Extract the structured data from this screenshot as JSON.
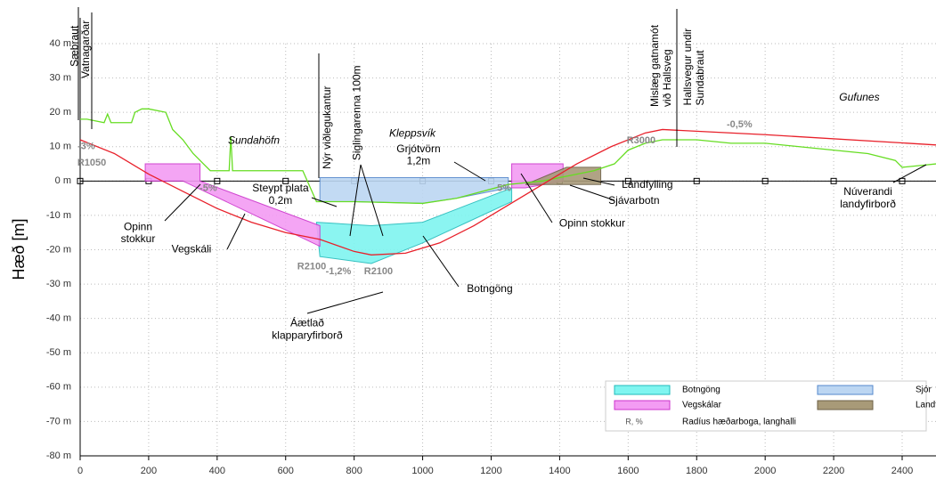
{
  "chart_data": {
    "type": "line",
    "ylabel": "Hæð [m]",
    "xlim": [
      0,
      2500
    ],
    "ylim": [
      -80,
      40
    ],
    "xticks": [
      0,
      200,
      400,
      600,
      800,
      1000,
      1200,
      1400,
      1600,
      1800,
      2000,
      2200,
      2400
    ],
    "yticks": [
      {
        "value": 40,
        "label": "40 m"
      },
      {
        "value": 30,
        "label": "30 m"
      },
      {
        "value": 20,
        "label": "20 m"
      },
      {
        "value": 10,
        "label": "10 m"
      },
      {
        "value": 0,
        "label": "0 m"
      },
      {
        "value": -10,
        "label": "-10 m"
      },
      {
        "value": -20,
        "label": "-20 m"
      },
      {
        "value": -30,
        "label": "-30 m"
      },
      {
        "value": -40,
        "label": "-40 m"
      },
      {
        "value": -50,
        "label": "-50 m"
      },
      {
        "value": -60,
        "label": "-60 m"
      },
      {
        "value": -70,
        "label": "-70 m"
      },
      {
        "value": -80,
        "label": "-80 m"
      }
    ],
    "grid": true,
    "series": [
      {
        "name": "Núverandi\nlandyfirborð",
        "color": "#66dd22",
        "x": [
          0,
          20,
          70,
          80,
          90,
          150,
          160,
          180,
          200,
          250,
          270,
          300,
          330,
          360,
          380,
          435,
          440,
          445,
          650,
          690,
          800,
          1000,
          1100,
          1250,
          1350,
          1450,
          1500,
          1560,
          1600,
          1650,
          1700,
          1800,
          1900,
          2000,
          2100,
          2200,
          2300,
          2380,
          2400,
          2450,
          2500
        ],
        "values": [
          18,
          18,
          17,
          19.5,
          17,
          17,
          20,
          21,
          21,
          20,
          15,
          12,
          8,
          5,
          3,
          3,
          13,
          3,
          3,
          -6,
          -6,
          -6.5,
          -5,
          -1,
          0,
          2,
          3,
          5,
          9,
          11,
          12,
          12,
          11,
          11,
          10,
          9,
          8,
          6,
          4,
          4.5,
          5
        ]
      },
      {
        "color": "#e8202a",
        "x": [
          0,
          100,
          200,
          300,
          400,
          500,
          600,
          700,
          800,
          850,
          950,
          1050,
          1150,
          1250,
          1350,
          1450,
          1550,
          1650,
          1700,
          2000,
          2500
        ],
        "values": [
          12,
          8,
          2,
          -3,
          -8,
          -12,
          -15,
          -17,
          -20.5,
          -21.5,
          -21,
          -18,
          -13,
          -7,
          -1,
          5,
          10,
          14,
          15,
          13.5,
          10.5
        ]
      }
    ],
    "areas": [
      {
        "name": "Botngöng",
        "color": "#7ff5f0",
        "edge": "#22bbbb",
        "polygons": [
          {
            "x": [
              690,
              850,
              1000,
              1130,
              1260,
              1260,
              1130,
              1000,
              850,
              700
            ],
            "y": [
              -12,
              -13,
              -12,
              -7,
              -2,
              -6,
              -12,
              -18,
              -24,
              -22
            ]
          }
        ]
      },
      {
        "name": "Vegskálar",
        "color": "#f39cf3",
        "edge": "#cc33cc",
        "polygons": [
          {
            "x": [
              190,
              350,
              350,
              700,
              700,
              300,
              190
            ],
            "y": [
              5,
              5,
              0,
              -13,
              -19,
              0,
              0
            ]
          },
          {
            "x": [
              1260,
              1410,
              1410,
              1300,
              1260
            ],
            "y": [
              5,
              5,
              0,
              -2,
              -2
            ]
          }
        ]
      },
      {
        "name": "Sjór",
        "color": "#bcd6f2",
        "edge": "#5588cc",
        "polygons": [
          {
            "x": [
              700,
              1250,
              1250,
              1100,
              1000,
              800,
              700
            ],
            "y": [
              1,
              1,
              -2,
              -5,
              -6.5,
              -6,
              -6
            ]
          }
        ]
      },
      {
        "name": "Landfylling",
        "color": "#a89a78",
        "edge": "#6d6046",
        "polygons": [
          {
            "x": [
              1300,
              1420,
              1520,
              1520
            ],
            "y": [
              -1,
              4,
              4,
              -1
            ]
          }
        ]
      }
    ],
    "legend_extra": {
      "symbol": "R, %",
      "label": "Radíus hæðarboga, langhalli"
    },
    "annotations": [
      {
        "text": "Sæbraut",
        "x": -15,
        "y": 33.3,
        "vertical": true
      },
      {
        "text": "Vatnagarðar",
        "x": 18,
        "y": 29.9,
        "vertical": true
      },
      {
        "text": "Nýr viðlegukantur",
        "x": 723,
        "y": 3.5,
        "vertical": true
      },
      {
        "text": "Siglingarenna 100m",
        "x": 809,
        "y": 6,
        "vertical": true
      },
      {
        "text": "Mislæg gatnamót\nvið Hallsveg",
        "x": 1680,
        "y": 21.6,
        "vertical": true
      },
      {
        "text": "Hallsvegur undir\nSundabraut",
        "x": 1776,
        "y": 22,
        "vertical": true
      },
      {
        "text": "Sundahöfn",
        "x": 507,
        "y": 11.7,
        "italic": true
      },
      {
        "text": "Kleppsvík",
        "x": 970,
        "y": 13.8,
        "italic": true
      },
      {
        "text": "Gufunes",
        "x": 2275,
        "y": 24.2,
        "italic": true
      },
      {
        "text": "Grjótvörn\n1,2m",
        "x": 988,
        "y": 9.2
      },
      {
        "text": "Steypt plata\n0,2m",
        "x": 585,
        "y": -2.3
      },
      {
        "text": "Opinn\nstokkur",
        "x": 169,
        "y": -13.5
      },
      {
        "text": "Vegskáli",
        "x": 325,
        "y": -20
      },
      {
        "text": "Áætlað\nklapparyfirborð",
        "x": 663,
        "y": -41.5
      },
      {
        "text": "Botngöng",
        "x": 1196,
        "y": -31.5
      },
      {
        "text": "Landfylling",
        "x": 1656,
        "y": -1.2
      },
      {
        "text": "Sjávarbotn",
        "x": 1617,
        "y": -5.8
      },
      {
        "text": "Opinn stokkur",
        "x": 1495,
        "y": -12.4
      },
      {
        "text": "Núverandi\nlandyfirborð",
        "x": 2300,
        "y": -3.3,
        "series": 0
      },
      {
        "text": "-3%",
        "x": 18,
        "y": 10,
        "gray": true
      },
      {
        "text": "-5%",
        "x": 374,
        "y": -2.2,
        "gray": true
      },
      {
        "text": "-1,2%",
        "x": 754,
        "y": -26.4,
        "gray": true
      },
      {
        "text": "5%",
        "x": 1238,
        "y": -2.2,
        "gray": true
      },
      {
        "text": "-0,5%",
        "x": 1925,
        "y": 16.4,
        "gray": true
      },
      {
        "text": "R1050",
        "x": 34,
        "y": 5.3,
        "gray": true
      },
      {
        "text": "R2100",
        "x": 676,
        "y": -25,
        "gray": true
      },
      {
        "text": "R2100",
        "x": 871,
        "y": -26.4,
        "gray": true
      },
      {
        "text": "R3000",
        "x": 1638,
        "y": 11.7,
        "gray": true
      }
    ]
  }
}
